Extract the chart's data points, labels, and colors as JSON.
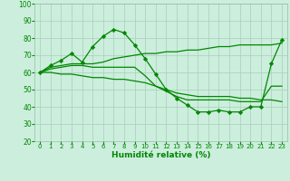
{
  "xlabel": "Humidité relative (%)",
  "background_color": "#cceedd",
  "grid_color": "#aaccbb",
  "line_color": "#008800",
  "xlim": [
    -0.5,
    23.5
  ],
  "ylim": [
    20,
    100
  ],
  "yticks": [
    20,
    30,
    40,
    50,
    60,
    70,
    80,
    90,
    100
  ],
  "xticks": [
    0,
    1,
    2,
    3,
    4,
    5,
    6,
    7,
    8,
    9,
    10,
    11,
    12,
    13,
    14,
    15,
    16,
    17,
    18,
    19,
    20,
    21,
    22,
    23
  ],
  "line1_marked": [
    60,
    64,
    67,
    71,
    66,
    75,
    81,
    85,
    83,
    76,
    68,
    59,
    50,
    45,
    41,
    37,
    37,
    38,
    37,
    37,
    40,
    40,
    65,
    79
  ],
  "line2": [
    60,
    63,
    64,
    65,
    65,
    65,
    66,
    68,
    69,
    70,
    71,
    71,
    72,
    72,
    73,
    73,
    74,
    75,
    75,
    76,
    76,
    76,
    76,
    77
  ],
  "line3": [
    60,
    60,
    59,
    59,
    58,
    57,
    57,
    56,
    56,
    55,
    54,
    52,
    50,
    48,
    47,
    46,
    46,
    46,
    46,
    45,
    45,
    44,
    44,
    43
  ],
  "line4": [
    60,
    62,
    63,
    64,
    64,
    63,
    63,
    63,
    63,
    63,
    58,
    52,
    49,
    46,
    44,
    44,
    44,
    44,
    44,
    43,
    43,
    43,
    52,
    52
  ]
}
